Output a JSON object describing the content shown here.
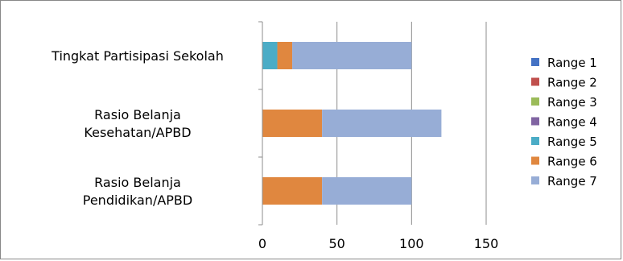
{
  "chart_data": {
    "type": "bar",
    "orientation": "horizontal",
    "stacked": true,
    "categories": [
      [
        "Tingkat Partisipasi Sekolah"
      ],
      [
        "Rasio Belanja",
        "Kesehatan/APBD"
      ],
      [
        "Rasio Belanja",
        "Pendidikan/APBD"
      ]
    ],
    "series": [
      {
        "name": "Range 1",
        "color": "#4472C4",
        "values": [
          0,
          0,
          0
        ]
      },
      {
        "name": "Range 2",
        "color": "#C0504D",
        "values": [
          0,
          0,
          0
        ]
      },
      {
        "name": "Range 3",
        "color": "#9BBB59",
        "values": [
          0,
          0,
          0
        ]
      },
      {
        "name": "Range 4",
        "color": "#8064A2",
        "values": [
          0,
          0,
          0
        ]
      },
      {
        "name": "Range 5",
        "color": "#4BACC6",
        "values": [
          10,
          0,
          0
        ]
      },
      {
        "name": "Range 6",
        "color": "#E0873F",
        "values": [
          10,
          40,
          40
        ]
      },
      {
        "name": "Range 7",
        "color": "#97ADD6",
        "values": [
          80,
          80,
          60
        ]
      }
    ],
    "xlim": [
      0,
      150
    ],
    "xticks": [
      "0",
      "50",
      "100",
      "150"
    ],
    "grid": "vertical",
    "legend": "right"
  }
}
